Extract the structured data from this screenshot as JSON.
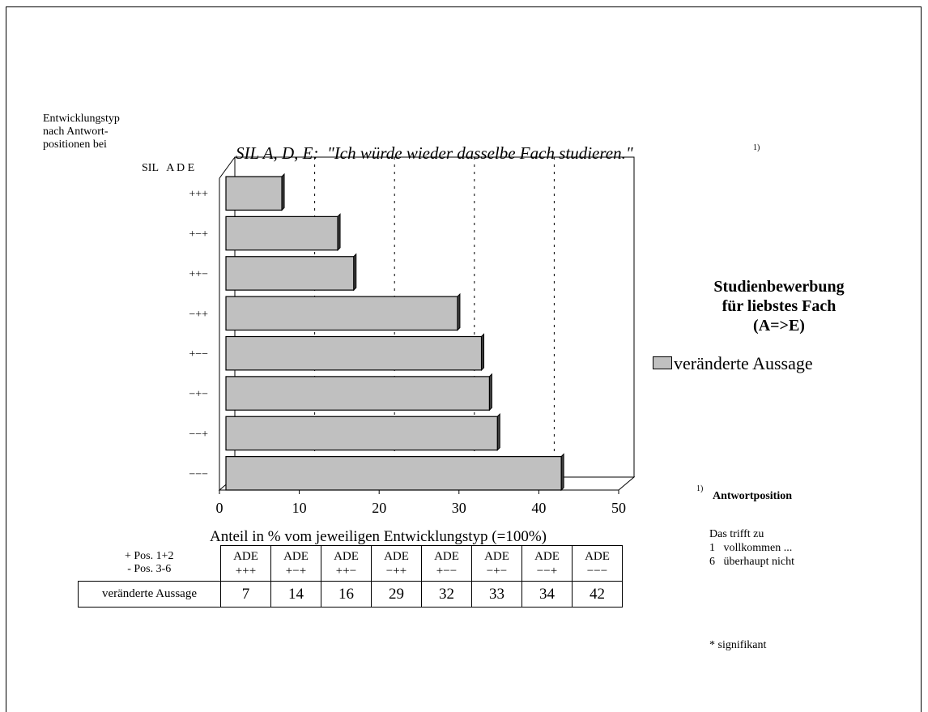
{
  "chart_data": {
    "type": "bar",
    "orientation": "horizontal",
    "title": "SIL A, D, E:  \"Ich würde wieder dasselbe Fach studieren.\"",
    "title_footnote": "1)",
    "categories": [
      "+++",
      "+−+",
      "++−",
      "−++",
      "+−−",
      "−+−",
      "−−+",
      "−−−"
    ],
    "series": [
      {
        "name": "veränderte Aussage",
        "values": [
          7,
          14,
          16,
          29,
          32,
          33,
          34,
          42
        ]
      }
    ],
    "xlim": [
      0,
      50
    ],
    "xticks": [
      "0",
      "10",
      "20",
      "30",
      "40",
      "50"
    ],
    "xlabel": "Anteil  in % vom jeweiligen Entwicklungstyp (=100%)",
    "ylabel": [
      "Entwicklungstyp",
      "nach Antwort-",
      "positionen bei"
    ],
    "y_header": "SIL   A D E",
    "grid": "dotted vertical",
    "bar_color": "#c0c0c0",
    "legend_position": "right"
  },
  "legend": {
    "title_lines": [
      "Studienbewerbung",
      "für liebstes Fach",
      "(A=>E)"
    ],
    "item": "veränderte Aussage"
  },
  "table": {
    "row_head_lines": [
      "+ Pos. 1+2",
      "- Pos. 3-6"
    ],
    "code_prefix": "ADE",
    "row_label": "veränderte Aussage"
  },
  "notes": {
    "footnote_mark": "1)",
    "answer_title": "Antwortposition",
    "lines": [
      "Das trifft zu",
      "1   vollkommen ...",
      "6   überhaupt nicht"
    ],
    "significance": "* signifikant"
  }
}
